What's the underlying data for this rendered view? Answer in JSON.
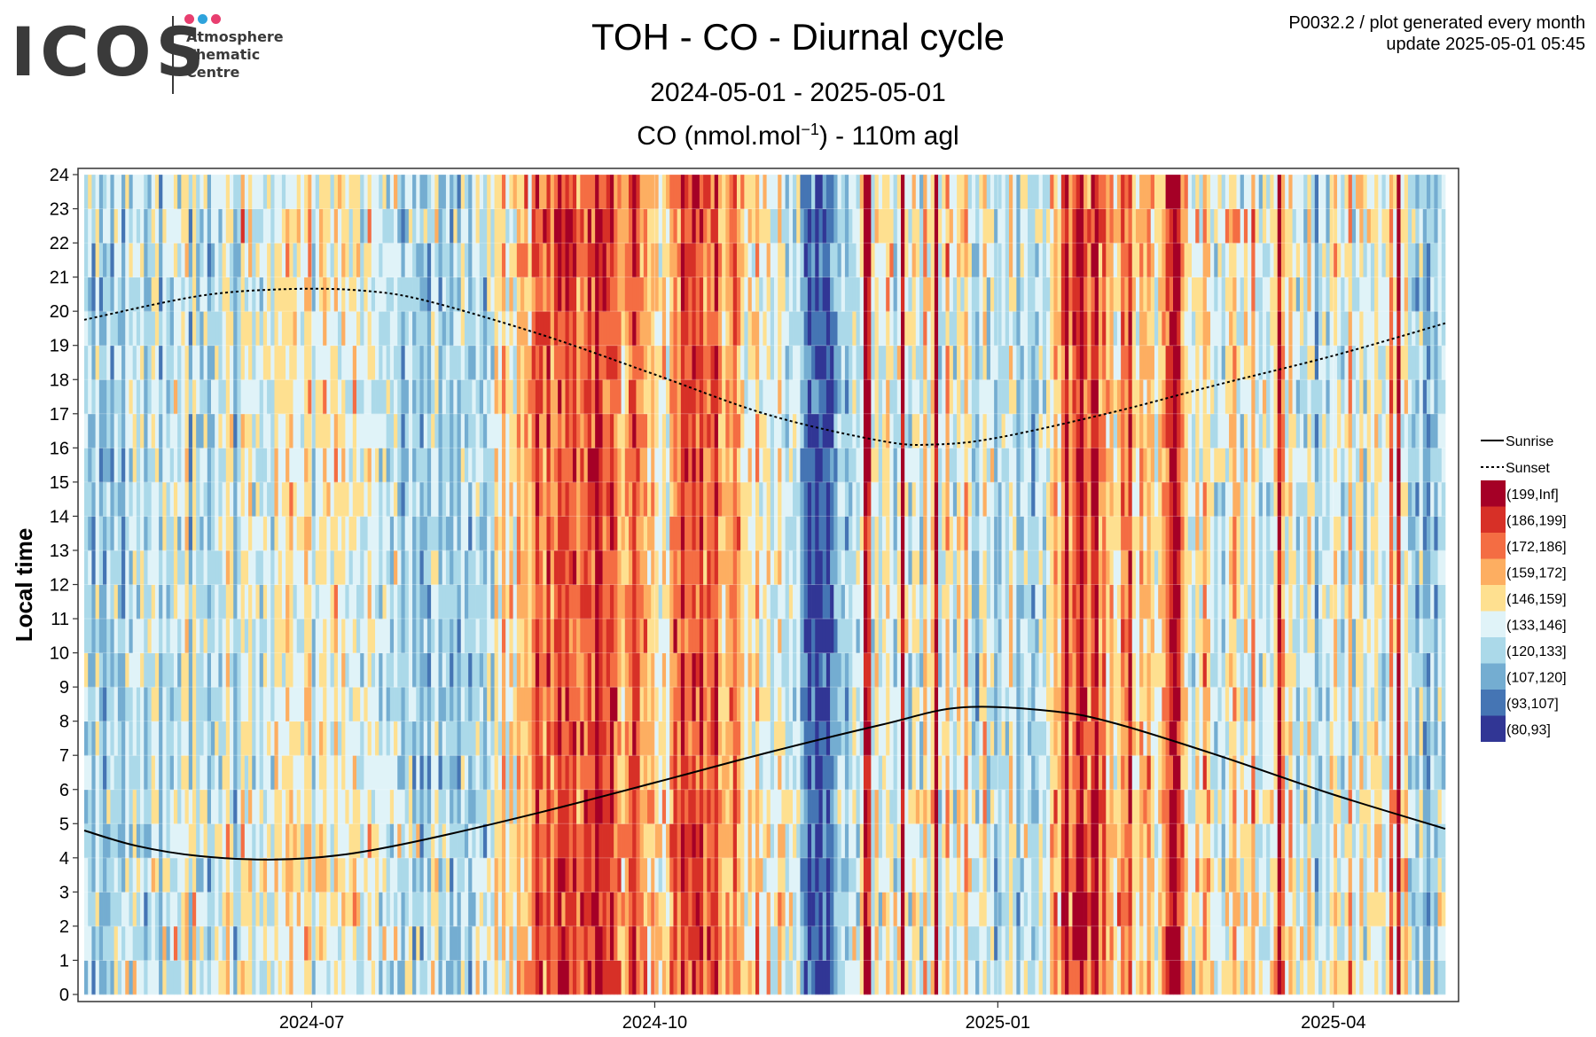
{
  "logo": {
    "text": "ICOS",
    "lines": [
      "Atmosphere",
      "Thematic",
      "Centre"
    ],
    "dot_colors": [
      "#e83e6f",
      "#2ea3dc",
      "#e83e6f"
    ]
  },
  "header": {
    "title": "TOH - CO - Diurnal cycle",
    "date_range": "2024-05-01 - 2025-05-01",
    "variable_prefix": "CO (nmol.mol",
    "variable_exp": "−1",
    "variable_suffix": ") - 110m agl",
    "info_line1": "P0032.2 / plot generated every month",
    "info_line2": "update  2025-05-01 05:45"
  },
  "chart_data": {
    "type": "heatmap",
    "title": "TOH - CO - Diurnal cycle",
    "subtitle": "2024-05-01 - 2025-05-01",
    "value_label": "CO (nmol.mol−1) - 110m agl",
    "xlabel": "",
    "ylabel": "Local time",
    "x_range": [
      "2024-05-01",
      "2025-05-01"
    ],
    "y_range": [
      0,
      24
    ],
    "x_ticks": [
      "2024-07",
      "2024-10",
      "2025-01",
      "2025-04"
    ],
    "x_tick_dates": [
      "2024-07-01",
      "2024-10-01",
      "2025-01-01",
      "2025-04-01"
    ],
    "y_ticks": [
      0,
      1,
      2,
      3,
      4,
      5,
      6,
      7,
      8,
      9,
      10,
      11,
      12,
      13,
      14,
      15,
      16,
      17,
      18,
      19,
      20,
      21,
      22,
      23,
      24
    ],
    "grid": true,
    "legend_position": "right",
    "bins": [
      {
        "label": "(199,Inf]",
        "color": "#a50026"
      },
      {
        "label": "(186,199]",
        "color": "#d73027"
      },
      {
        "label": "(172,186]",
        "color": "#f46d43"
      },
      {
        "label": "(159,172]",
        "color": "#fdae61"
      },
      {
        "label": "(146,159]",
        "color": "#fee090"
      },
      {
        "label": "(133,146]",
        "color": "#e0f3f8"
      },
      {
        "label": "(120,133]",
        "color": "#abd9e9"
      },
      {
        "label": "(107,120]",
        "color": "#74add1"
      },
      {
        "label": "(93,107]",
        "color": "#4575b4"
      },
      {
        "label": "(80,93]",
        "color": "#313695"
      }
    ],
    "lines": [
      {
        "name": "Sunrise",
        "style": "solid",
        "points": [
          [
            "2024-05-01",
            4.8
          ],
          [
            "2024-05-15",
            4.35
          ],
          [
            "2024-06-01",
            4.05
          ],
          [
            "2024-06-21",
            3.95
          ],
          [
            "2024-07-10",
            4.1
          ],
          [
            "2024-08-01",
            4.55
          ],
          [
            "2024-09-01",
            5.35
          ],
          [
            "2024-10-01",
            6.2
          ],
          [
            "2024-11-01",
            7.1
          ],
          [
            "2024-12-01",
            7.9
          ],
          [
            "2024-12-22",
            8.4
          ],
          [
            "2025-01-15",
            8.3
          ],
          [
            "2025-02-01",
            7.95
          ],
          [
            "2025-03-01",
            7.0
          ],
          [
            "2025-04-01",
            5.85
          ],
          [
            "2025-05-01",
            4.85
          ]
        ]
      },
      {
        "name": "Sunset",
        "style": "dotted",
        "points": [
          [
            "2024-05-01",
            19.75
          ],
          [
            "2024-06-01",
            20.45
          ],
          [
            "2024-06-25",
            20.65
          ],
          [
            "2024-07-15",
            20.6
          ],
          [
            "2024-08-01",
            20.3
          ],
          [
            "2024-09-01",
            19.3
          ],
          [
            "2024-10-01",
            18.15
          ],
          [
            "2024-11-01",
            16.95
          ],
          [
            "2024-12-01",
            16.2
          ],
          [
            "2024-12-15",
            16.1
          ],
          [
            "2025-01-01",
            16.3
          ],
          [
            "2025-02-01",
            17.05
          ],
          [
            "2025-03-01",
            17.85
          ],
          [
            "2025-04-01",
            18.7
          ],
          [
            "2025-05-01",
            19.65
          ]
        ]
      }
    ],
    "daily_profile": [
      3,
      3,
      2,
      4,
      2,
      2,
      3,
      2,
      4,
      3,
      2,
      4,
      3,
      4,
      3,
      4,
      2,
      3,
      4,
      4,
      2,
      4,
      3,
      3,
      4,
      3,
      4,
      5,
      2,
      5,
      3,
      3,
      4,
      2,
      3,
      4,
      3,
      4,
      5,
      4,
      2,
      3,
      5,
      4,
      5,
      3,
      4,
      3,
      4,
      4,
      3,
      5,
      4,
      4,
      5,
      5,
      4,
      4,
      4,
      5,
      5,
      3,
      4,
      5,
      5,
      4,
      4,
      5,
      4,
      5,
      4,
      4,
      5,
      4,
      3,
      4,
      5,
      4,
      4,
      3,
      4,
      3,
      3,
      4,
      3,
      2,
      3,
      4,
      2,
      3,
      2,
      3,
      2,
      4,
      4,
      2,
      3,
      3,
      2,
      3,
      2,
      4,
      3,
      2,
      3,
      4,
      3,
      2,
      4,
      3,
      5,
      4,
      6,
      4,
      5,
      4,
      6,
      5,
      6,
      5,
      7,
      8,
      7,
      6,
      8,
      6,
      7,
      8,
      7,
      8,
      7,
      8,
      6,
      7,
      7,
      8,
      7,
      9,
      8,
      7,
      7,
      8,
      7,
      6,
      5,
      6,
      7,
      8,
      7,
      6,
      6,
      5,
      6,
      5,
      4,
      5,
      4,
      6,
      7,
      6,
      8,
      7,
      7,
      8,
      7,
      8,
      6,
      7,
      7,
      8,
      6,
      5,
      6,
      6,
      7,
      6,
      5,
      4,
      5,
      4,
      6,
      4,
      4,
      5,
      3,
      4,
      5,
      4,
      3,
      4,
      3,
      4,
      2,
      1,
      0,
      1,
      0,
      0,
      1,
      0,
      1,
      2,
      3,
      3,
      2,
      3,
      4,
      3,
      4,
      9,
      8,
      3,
      5,
      3,
      4,
      5,
      4,
      3,
      4,
      9,
      4,
      3,
      5,
      4,
      3,
      6,
      4,
      5,
      9,
      3,
      4,
      6,
      4,
      3,
      5,
      4,
      6,
      4,
      3,
      2,
      4,
      5,
      3,
      4,
      2,
      3,
      4,
      3,
      5,
      4,
      2,
      3,
      4,
      3,
      2,
      3,
      4,
      3,
      4,
      5,
      6,
      5,
      7,
      9,
      6,
      7,
      8,
      9,
      7,
      6,
      8,
      9,
      6,
      7,
      5,
      6,
      4,
      5,
      7,
      6,
      8,
      5,
      4,
      6,
      5,
      6,
      5,
      4,
      5,
      6,
      7,
      8,
      9,
      8,
      6,
      5,
      4,
      3,
      5,
      4,
      6,
      5,
      4,
      3,
      4,
      3,
      4,
      5,
      6,
      4,
      3,
      5,
      4,
      6,
      4,
      3,
      4,
      3,
      4,
      5,
      9,
      6,
      4,
      5,
      4,
      3,
      4,
      3,
      5,
      4,
      2,
      3,
      4,
      3,
      4,
      5,
      4,
      3,
      4,
      6,
      3,
      4,
      5,
      3,
      4,
      4,
      5,
      4,
      3,
      4,
      7,
      4,
      9,
      4,
      5
    ]
  },
  "legend": {
    "sunrise_label": "Sunrise",
    "sunset_label": "Sunset"
  }
}
